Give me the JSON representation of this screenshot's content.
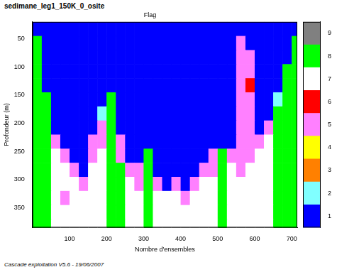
{
  "chart_data": {
    "type": "heatmap",
    "title": "sedimane_leg1_150K_0_osite",
    "subtitle": "Flag",
    "x_label": "Nombre d'ensembles",
    "y_label": "Profondeur (m)",
    "footer": "Cascade exploitation V5.6 - 19/06/2007",
    "xlim": [
      0,
      715
    ],
    "xticks": [
      100,
      200,
      300,
      400,
      500,
      600,
      700
    ],
    "ylim": [
      20,
      385
    ],
    "yticks": [
      50,
      100,
      150,
      200,
      250,
      300,
      350
    ],
    "grid": false,
    "cells": {
      "x_bins": [
        0,
        25,
        50,
        75,
        100,
        125,
        150,
        175,
        200,
        225,
        250,
        275,
        300,
        325,
        350,
        375,
        400,
        425,
        450,
        475,
        500,
        525,
        550,
        575,
        600,
        625,
        650,
        675,
        700,
        715
      ],
      "y_bins": [
        20,
        45,
        70,
        95,
        120,
        145,
        170,
        195,
        220,
        245,
        270,
        295,
        320,
        345,
        370,
        385
      ],
      "flags": [
        [
          1,
          1,
          1,
          1,
          1,
          1,
          1,
          1,
          1,
          1,
          1,
          1,
          1,
          1,
          1,
          1,
          1,
          1,
          1,
          1,
          1,
          1,
          1,
          1,
          1,
          1,
          1,
          1,
          1
        ],
        [
          8,
          1,
          1,
          1,
          1,
          1,
          1,
          1,
          1,
          1,
          1,
          1,
          1,
          1,
          1,
          1,
          1,
          1,
          1,
          1,
          1,
          1,
          5,
          1,
          1,
          1,
          1,
          1,
          8
        ],
        [
          8,
          1,
          1,
          1,
          1,
          1,
          1,
          1,
          1,
          1,
          1,
          1,
          1,
          1,
          1,
          1,
          1,
          1,
          1,
          1,
          1,
          1,
          5,
          5,
          1,
          1,
          1,
          1,
          8
        ],
        [
          8,
          1,
          1,
          1,
          1,
          1,
          1,
          1,
          1,
          1,
          1,
          1,
          1,
          1,
          1,
          1,
          1,
          1,
          1,
          1,
          1,
          1,
          5,
          5,
          1,
          1,
          1,
          8,
          8
        ],
        [
          8,
          1,
          1,
          1,
          1,
          1,
          1,
          1,
          1,
          1,
          1,
          1,
          1,
          1,
          1,
          1,
          1,
          1,
          1,
          1,
          1,
          1,
          5,
          6,
          1,
          1,
          1,
          8,
          8
        ],
        [
          8,
          8,
          1,
          1,
          1,
          1,
          1,
          1,
          8,
          1,
          1,
          1,
          1,
          1,
          1,
          1,
          1,
          1,
          1,
          1,
          1,
          1,
          5,
          5,
          1,
          1,
          2,
          8,
          8
        ],
        [
          8,
          8,
          1,
          1,
          1,
          1,
          1,
          2,
          8,
          1,
          1,
          1,
          1,
          1,
          1,
          1,
          1,
          1,
          1,
          1,
          1,
          1,
          5,
          5,
          1,
          1,
          8,
          8,
          8
        ],
        [
          8,
          8,
          1,
          1,
          1,
          1,
          1,
          5,
          8,
          1,
          1,
          1,
          1,
          1,
          1,
          1,
          1,
          1,
          1,
          1,
          1,
          1,
          5,
          5,
          1,
          5,
          8,
          8,
          8
        ],
        [
          8,
          8,
          5,
          1,
          1,
          1,
          5,
          5,
          8,
          5,
          1,
          1,
          1,
          1,
          1,
          1,
          1,
          1,
          1,
          1,
          1,
          1,
          5,
          5,
          5,
          7,
          8,
          8,
          8
        ],
        [
          8,
          8,
          7,
          5,
          1,
          1,
          5,
          7,
          8,
          5,
          1,
          1,
          8,
          1,
          1,
          1,
          1,
          1,
          1,
          5,
          8,
          5,
          5,
          5,
          7,
          7,
          8,
          8,
          8
        ],
        [
          8,
          8,
          7,
          7,
          5,
          1,
          7,
          7,
          8,
          8,
          5,
          5,
          8,
          1,
          1,
          1,
          1,
          1,
          5,
          5,
          8,
          7,
          5,
          7,
          7,
          7,
          8,
          8,
          8
        ],
        [
          8,
          8,
          7,
          7,
          7,
          5,
          7,
          7,
          8,
          8,
          7,
          5,
          8,
          5,
          1,
          5,
          1,
          5,
          7,
          7,
          8,
          7,
          7,
          7,
          7,
          7,
          8,
          8,
          8
        ],
        [
          8,
          8,
          7,
          5,
          7,
          7,
          7,
          7,
          8,
          8,
          7,
          7,
          8,
          7,
          7,
          7,
          5,
          7,
          7,
          7,
          8,
          7,
          7,
          7,
          7,
          7,
          8,
          8,
          8
        ],
        [
          8,
          8,
          7,
          7,
          7,
          7,
          7,
          7,
          8,
          8,
          7,
          7,
          8,
          7,
          7,
          7,
          7,
          7,
          7,
          7,
          8,
          7,
          7,
          7,
          7,
          7,
          8,
          8,
          8
        ],
        [
          8,
          8,
          7,
          7,
          7,
          7,
          7,
          7,
          8,
          8,
          7,
          7,
          8,
          7,
          7,
          7,
          7,
          7,
          7,
          7,
          8,
          7,
          7,
          7,
          7,
          7,
          8,
          8,
          8
        ]
      ]
    },
    "colorbar": {
      "range": [
        0.5,
        9.5
      ],
      "ticks": [
        1,
        2,
        3,
        4,
        5,
        6,
        7,
        8,
        9
      ],
      "colors": [
        "#0000ff",
        "#80ffff",
        "#ff8000",
        "#ffff00",
        "#ff80ff",
        "#ff0000",
        "#ffffff",
        "#00ff00",
        "#808080"
      ]
    }
  }
}
